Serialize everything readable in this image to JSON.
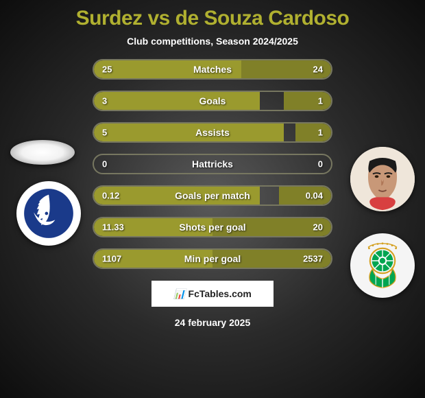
{
  "title": "Surdez vs de Souza Cardoso",
  "subtitle": "Club competitions, Season 2024/2025",
  "colors": {
    "left_fill": "#9a9a2e",
    "right_fill": "#808028",
    "bar_border": "#777760",
    "title_color": "#b0b030",
    "text_color": "#ffffff",
    "background_center": "#5a5a5a",
    "background_edge": "#0d0d0d"
  },
  "stats": [
    {
      "label": "Matches",
      "left_val": "25",
      "right_val": "24",
      "left_pct": 62,
      "right_pct": 38
    },
    {
      "label": "Goals",
      "left_val": "3",
      "right_val": "1",
      "left_pct": 70,
      "right_pct": 20
    },
    {
      "label": "Assists",
      "left_val": "5",
      "right_val": "1",
      "left_pct": 80,
      "right_pct": 15
    },
    {
      "label": "Hattricks",
      "left_val": "0",
      "right_val": "0",
      "left_pct": 0,
      "right_pct": 0
    },
    {
      "label": "Goals per match",
      "left_val": "0.12",
      "right_val": "0.04",
      "left_pct": 70,
      "right_pct": 22
    },
    {
      "label": "Shots per goal",
      "left_val": "11.33",
      "right_val": "20",
      "left_pct": 50,
      "right_pct": 50
    },
    {
      "label": "Min per goal",
      "left_val": "1107",
      "right_val": "2537",
      "left_pct": 50,
      "right_pct": 50
    }
  ],
  "watermark": "FcTables.com",
  "date": "24 february 2025",
  "players": {
    "left_name": "Surdez",
    "right_name": "de Souza Cardoso"
  },
  "clubs": {
    "left_primary": "#1a3a8a",
    "right_primary": "#00a651",
    "right_stripes": "#ffffff"
  }
}
